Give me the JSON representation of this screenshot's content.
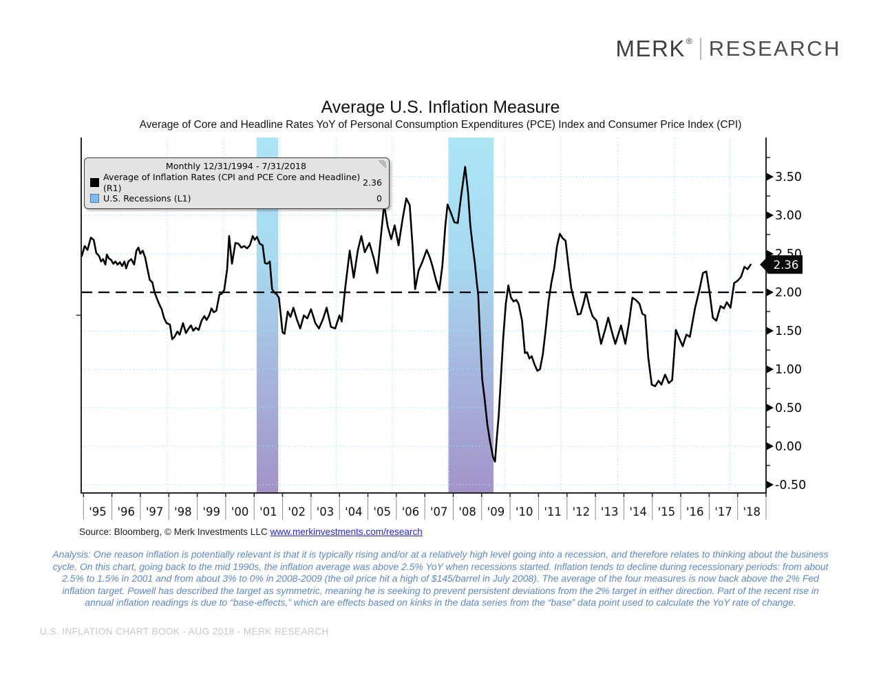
{
  "header": {
    "brand": "MERK",
    "brand_reg": "®",
    "brand_sub": "RESEARCH"
  },
  "chart": {
    "title": "Average U.S. Inflation Measure",
    "subtitle": "Average of Core and Headline Rates YoY of Personal Consumption Expenditures (PCE) Index and Consumer Price Index (CPI)",
    "legend": {
      "period": "Monthly 12/31/1994 - 7/31/2018",
      "items": [
        {
          "label": "Average of Inflation Rates (CPI and PCE Core and Headline) (R1)",
          "value": "2.36"
        },
        {
          "label": "U.S. Recessions (L1)",
          "value": "0"
        }
      ]
    },
    "last_value_label": "2.36"
  },
  "chart_data": {
    "type": "line",
    "title": "Average U.S. Inflation Measure",
    "subtitle": "Average of Core and Headline Rates YoY of Personal Consumption Expenditures (PCE) Index and Consumer Price Index (CPI)",
    "xlabel": "",
    "ylabel": "",
    "grid": true,
    "legend_position": "top-left",
    "xlim": [
      1994.92,
      2019.0
    ],
    "ylim": [
      -0.607,
      4.01
    ],
    "target_line": 2.0,
    "y_ticks": [
      3.5,
      3.0,
      2.5,
      2.0,
      1.5,
      1.0,
      0.5,
      0.0,
      -0.5
    ],
    "y_tick_labels": [
      "3.50",
      "3.00",
      "2.50",
      "2.00",
      "1.50",
      "1.00",
      "0.50",
      "0.00",
      "-0.50"
    ],
    "x_tick_labels": [
      "'95",
      "'96",
      "'97",
      "'98",
      "'99",
      "'00",
      "'01",
      "'02",
      "'03",
      "'04",
      "'05",
      "'06",
      "'07",
      "'08",
      "'09",
      "'10",
      "'11",
      "'12",
      "'13",
      "'14",
      "'15",
      "'16",
      "'17",
      "'18"
    ],
    "x_tick_start_year": 1995,
    "grid_x_years": [
      1997.95,
      1999.93,
      2001.92,
      2003.88,
      2005.86,
      2007.85,
      2009.81,
      2011.8,
      2013.78,
      2015.78,
      2017.73
    ],
    "recession_bands": [
      {
        "start": 2001.09,
        "end": 2001.85
      },
      {
        "start": 2007.83,
        "end": 2009.42
      }
    ],
    "series": [
      {
        "name": "Average of Inflation Rates (CPI and PCE Core and Headline) (R1)",
        "last_value": 2.36,
        "points": [
          [
            1994.94,
            2.47
          ],
          [
            1995.04,
            2.6
          ],
          [
            1995.14,
            2.55
          ],
          [
            1995.26,
            2.71
          ],
          [
            1995.36,
            2.68
          ],
          [
            1995.45,
            2.51
          ],
          [
            1995.55,
            2.47
          ],
          [
            1995.62,
            2.4
          ],
          [
            1995.69,
            2.43
          ],
          [
            1995.77,
            2.36
          ],
          [
            1995.82,
            2.49
          ],
          [
            1995.89,
            2.44
          ],
          [
            1995.97,
            2.42
          ],
          [
            1996.05,
            2.37
          ],
          [
            1996.12,
            2.4
          ],
          [
            1996.2,
            2.36
          ],
          [
            1996.28,
            2.39
          ],
          [
            1996.36,
            2.34
          ],
          [
            1996.44,
            2.4
          ],
          [
            1996.5,
            2.31
          ],
          [
            1996.58,
            2.4
          ],
          [
            1996.68,
            2.43
          ],
          [
            1996.78,
            2.36
          ],
          [
            1996.86,
            2.54
          ],
          [
            1996.93,
            2.58
          ],
          [
            1997.0,
            2.5
          ],
          [
            1997.08,
            2.54
          ],
          [
            1997.17,
            2.45
          ],
          [
            1997.25,
            2.3
          ],
          [
            1997.33,
            2.16
          ],
          [
            1997.42,
            2.13
          ],
          [
            1997.5,
            2.0
          ],
          [
            1997.58,
            1.92
          ],
          [
            1997.67,
            1.84
          ],
          [
            1997.75,
            1.78
          ],
          [
            1997.83,
            1.67
          ],
          [
            1997.92,
            1.6
          ],
          [
            1998.04,
            1.58
          ],
          [
            1998.12,
            1.39
          ],
          [
            1998.2,
            1.42
          ],
          [
            1998.3,
            1.49
          ],
          [
            1998.38,
            1.45
          ],
          [
            1998.5,
            1.6
          ],
          [
            1998.6,
            1.47
          ],
          [
            1998.7,
            1.53
          ],
          [
            1998.78,
            1.57
          ],
          [
            1998.86,
            1.5
          ],
          [
            1998.95,
            1.54
          ],
          [
            1999.05,
            1.51
          ],
          [
            1999.15,
            1.63
          ],
          [
            1999.25,
            1.69
          ],
          [
            1999.33,
            1.64
          ],
          [
            1999.42,
            1.7
          ],
          [
            1999.5,
            1.79
          ],
          [
            1999.58,
            1.74
          ],
          [
            1999.67,
            1.76
          ],
          [
            1999.78,
            1.97
          ],
          [
            1999.86,
            1.98
          ],
          [
            1999.95,
            2.03
          ],
          [
            2000.05,
            2.3
          ],
          [
            2000.12,
            2.73
          ],
          [
            2000.22,
            2.37
          ],
          [
            2000.34,
            2.64
          ],
          [
            2000.45,
            2.63
          ],
          [
            2000.55,
            2.58
          ],
          [
            2000.65,
            2.6
          ],
          [
            2000.75,
            2.57
          ],
          [
            2000.85,
            2.61
          ],
          [
            2000.95,
            2.73
          ],
          [
            2001.02,
            2.68
          ],
          [
            2001.1,
            2.72
          ],
          [
            2001.2,
            2.63
          ],
          [
            2001.3,
            2.61
          ],
          [
            2001.38,
            2.38
          ],
          [
            2001.46,
            2.37
          ],
          [
            2001.55,
            2.4
          ],
          [
            2001.63,
            2.04
          ],
          [
            2001.7,
            2.0
          ],
          [
            2001.8,
            1.97
          ],
          [
            2001.87,
            1.93
          ],
          [
            2001.94,
            1.69
          ],
          [
            2002.0,
            1.48
          ],
          [
            2002.07,
            1.46
          ],
          [
            2002.18,
            1.75
          ],
          [
            2002.28,
            1.68
          ],
          [
            2002.38,
            1.8
          ],
          [
            2002.5,
            1.65
          ],
          [
            2002.62,
            1.53
          ],
          [
            2002.75,
            1.7
          ],
          [
            2002.87,
            1.66
          ],
          [
            2003.0,
            1.78
          ],
          [
            2003.15,
            1.6
          ],
          [
            2003.28,
            1.53
          ],
          [
            2003.42,
            1.65
          ],
          [
            2003.55,
            1.8
          ],
          [
            2003.7,
            1.55
          ],
          [
            2003.85,
            1.53
          ],
          [
            2004.0,
            1.7
          ],
          [
            2004.08,
            1.62
          ],
          [
            2004.2,
            2.05
          ],
          [
            2004.36,
            2.54
          ],
          [
            2004.5,
            2.19
          ],
          [
            2004.65,
            2.55
          ],
          [
            2004.77,
            2.73
          ],
          [
            2004.89,
            2.52
          ],
          [
            2005.05,
            2.64
          ],
          [
            2005.2,
            2.45
          ],
          [
            2005.33,
            2.25
          ],
          [
            2005.45,
            2.7
          ],
          [
            2005.57,
            3.14
          ],
          [
            2005.7,
            2.85
          ],
          [
            2005.82,
            2.69
          ],
          [
            2005.94,
            2.87
          ],
          [
            2006.08,
            2.61
          ],
          [
            2006.22,
            2.95
          ],
          [
            2006.35,
            3.22
          ],
          [
            2006.47,
            3.13
          ],
          [
            2006.57,
            2.6
          ],
          [
            2006.66,
            2.04
          ],
          [
            2006.78,
            2.28
          ],
          [
            2006.91,
            2.39
          ],
          [
            2007.07,
            2.55
          ],
          [
            2007.18,
            2.45
          ],
          [
            2007.27,
            2.34
          ],
          [
            2007.4,
            2.15
          ],
          [
            2007.51,
            2.03
          ],
          [
            2007.62,
            2.35
          ],
          [
            2007.72,
            2.85
          ],
          [
            2007.8,
            3.14
          ],
          [
            2007.92,
            3.03
          ],
          [
            2008.04,
            2.91
          ],
          [
            2008.16,
            2.9
          ],
          [
            2008.28,
            3.25
          ],
          [
            2008.42,
            3.63
          ],
          [
            2008.52,
            3.3
          ],
          [
            2008.6,
            2.87
          ],
          [
            2008.69,
            2.58
          ],
          [
            2008.76,
            2.38
          ],
          [
            2008.83,
            2.12
          ],
          [
            2008.88,
            1.97
          ],
          [
            2008.96,
            1.3
          ],
          [
            2009.02,
            0.87
          ],
          [
            2009.1,
            0.63
          ],
          [
            2009.2,
            0.28
          ],
          [
            2009.3,
            0.05
          ],
          [
            2009.4,
            -0.14
          ],
          [
            2009.47,
            -0.2
          ],
          [
            2009.53,
            0.1
          ],
          [
            2009.6,
            0.4
          ],
          [
            2009.68,
            0.91
          ],
          [
            2009.76,
            1.42
          ],
          [
            2009.85,
            1.85
          ],
          [
            2009.94,
            2.09
          ],
          [
            2010.03,
            1.93
          ],
          [
            2010.12,
            1.88
          ],
          [
            2010.22,
            1.9
          ],
          [
            2010.3,
            1.85
          ],
          [
            2010.42,
            1.63
          ],
          [
            2010.52,
            1.21
          ],
          [
            2010.6,
            1.22
          ],
          [
            2010.68,
            1.14
          ],
          [
            2010.76,
            1.17
          ],
          [
            2010.86,
            1.06
          ],
          [
            2010.96,
            0.98
          ],
          [
            2011.05,
            1.0
          ],
          [
            2011.15,
            1.19
          ],
          [
            2011.25,
            1.51
          ],
          [
            2011.35,
            1.87
          ],
          [
            2011.45,
            2.12
          ],
          [
            2011.55,
            2.31
          ],
          [
            2011.65,
            2.6
          ],
          [
            2011.75,
            2.76
          ],
          [
            2011.85,
            2.7
          ],
          [
            2011.95,
            2.67
          ],
          [
            2012.05,
            2.35
          ],
          [
            2012.15,
            2.05
          ],
          [
            2012.25,
            1.9
          ],
          [
            2012.38,
            1.71
          ],
          [
            2012.48,
            1.72
          ],
          [
            2012.6,
            1.88
          ],
          [
            2012.67,
            2.0
          ],
          [
            2012.8,
            1.8
          ],
          [
            2012.9,
            1.69
          ],
          [
            2013.04,
            1.63
          ],
          [
            2013.2,
            1.33
          ],
          [
            2013.33,
            1.5
          ],
          [
            2013.45,
            1.67
          ],
          [
            2013.57,
            1.5
          ],
          [
            2013.7,
            1.33
          ],
          [
            2013.9,
            1.57
          ],
          [
            2014.05,
            1.33
          ],
          [
            2014.18,
            1.6
          ],
          [
            2014.3,
            1.93
          ],
          [
            2014.42,
            1.9
          ],
          [
            2014.55,
            1.85
          ],
          [
            2014.65,
            1.72
          ],
          [
            2014.75,
            1.7
          ],
          [
            2014.86,
            1.15
          ],
          [
            2014.98,
            0.8
          ],
          [
            2015.1,
            0.78
          ],
          [
            2015.22,
            0.85
          ],
          [
            2015.32,
            0.8
          ],
          [
            2015.45,
            0.93
          ],
          [
            2015.58,
            0.82
          ],
          [
            2015.7,
            0.86
          ],
          [
            2015.83,
            1.51
          ],
          [
            2015.95,
            1.4
          ],
          [
            2016.07,
            1.3
          ],
          [
            2016.2,
            1.45
          ],
          [
            2016.32,
            1.42
          ],
          [
            2016.5,
            1.79
          ],
          [
            2016.65,
            2.02
          ],
          [
            2016.78,
            2.25
          ],
          [
            2016.9,
            2.27
          ],
          [
            2017.02,
            1.98
          ],
          [
            2017.13,
            1.67
          ],
          [
            2017.25,
            1.63
          ],
          [
            2017.4,
            1.82
          ],
          [
            2017.52,
            1.79
          ],
          [
            2017.62,
            1.87
          ],
          [
            2017.75,
            1.8
          ],
          [
            2017.88,
            2.12
          ],
          [
            2018.0,
            2.15
          ],
          [
            2018.12,
            2.2
          ],
          [
            2018.24,
            2.33
          ],
          [
            2018.35,
            2.3
          ],
          [
            2018.46,
            2.36
          ]
        ]
      }
    ]
  },
  "source": {
    "prefix": "Source: Bloomberg, © Merk Investments LLC ",
    "link": "www.merkinvestments.com/research"
  },
  "analysis": "Analysis: One reason inflation is potentially relevant is that it is typically rising and/or at a relatively high level going into a recession, and therefore relates to thinking about the business cycle. On this chart, going back to the mid 1990s, the inflation average was above 2.5% YoY when recessions started. Inflation tends to decline during recessionary periods: from about 2.5% to 1.5% in 2001 and from about 3% to 0% in 2008-2009 (the oil price hit a high of $145/barrel in July 2008). The average of the four measures is now back above the 2% Fed inflation target. Powell has described the target as symmetric, meaning he is seeking to prevent persistent deviations from the 2% target in either direction. Part of the recent rise in annual inflation readings is due to “base-effects,” which are effects based on kinks in the data series from the “base” data point used to calculate the YoY rate of change.",
  "footer": "U.S. INFLATION CHART BOOK - AUG 2018 - MERK RESEARCH",
  "colors": {
    "line": "#000000",
    "inflation_swatch": "#000000",
    "recession_swatch": "#7cbcf5",
    "band_top": "#ade6f7",
    "band_upper": "#a7d9f0",
    "band_lower": "#a6b0da",
    "band_bottom": "#a293c8",
    "grid": "#9fe6ef",
    "axis": "#222222",
    "badge_bg": "#0a0a0a",
    "badge_text": "#ffffff",
    "link": "#2626d6",
    "analysis_text": "#5d87c9",
    "footer_text": "#c8c8c8"
  }
}
